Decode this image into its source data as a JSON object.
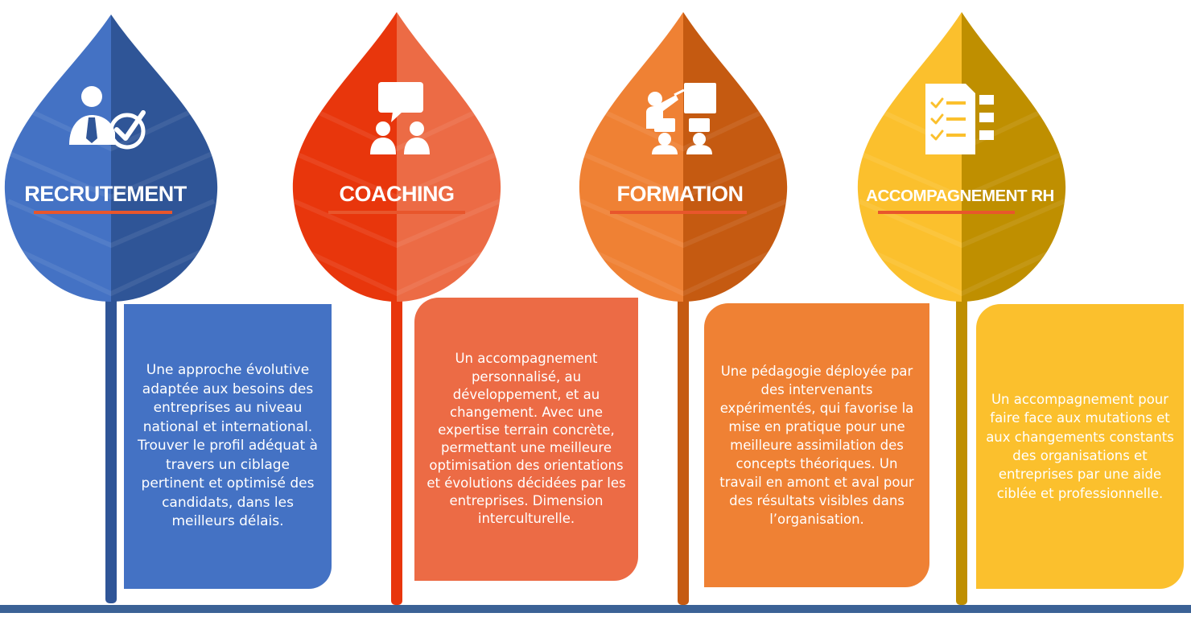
{
  "sections": [
    {
      "title": "RECRUTEMENT",
      "icon": "recruiter-checkmark-icon",
      "colors": {
        "left": "#4472c4",
        "right": "#2f5597",
        "box": "#4472c4"
      },
      "description": "Une approche évolutive adaptée aux besoins des entreprises au niveau national et international. Trouver le profil adéquat à travers un ciblage pertinent et optimisé des candidats, dans les meilleurs délais."
    },
    {
      "title": "COACHING",
      "icon": "speech-bubble-people-icon",
      "colors": {
        "left": "#e8360c",
        "right": "#ec6b45",
        "box": "#ec6b45"
      },
      "description": "Un accompagnement personnalisé, au développement, et au changement. Avec une expertise terrain concrète, permettant une meilleure optimisation des orientations et évolutions décidées par les entreprises. Dimension interculturelle."
    },
    {
      "title": "FORMATION",
      "icon": "presentation-board-icon",
      "colors": {
        "left": "#ef8134",
        "right": "#c55a11",
        "box": "#ef8134"
      },
      "description": "Une pédagogie déployée par des intervenants expérimentés, qui favorise la mise en pratique pour une meilleure assimilation des concepts théoriques. Un travail en amont et aval pour des résultats visibles dans l’organisation."
    },
    {
      "title": "ACCOMPAGNEMENT RH",
      "icon": "checklist-document-icon",
      "colors": {
        "left": "#fbc02d",
        "right": "#bf8f00",
        "box": "#fbc02d"
      },
      "description": "Un accompagnement pour faire face aux mutations et aux changements constants des organisations et entreprises par une aide ciblée et professionnelle."
    }
  ],
  "underline_color": "#e8562c"
}
